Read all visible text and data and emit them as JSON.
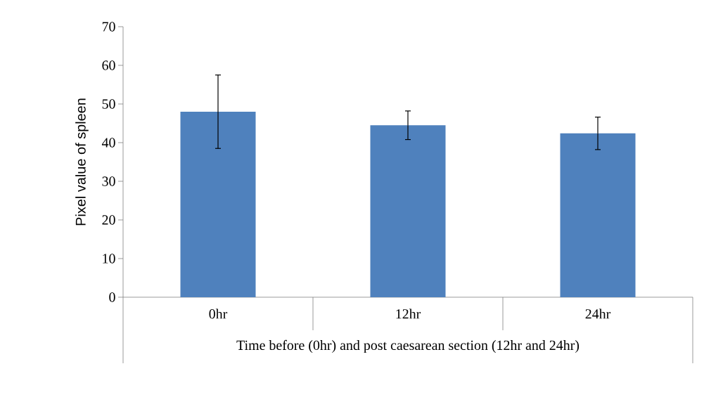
{
  "chart_data": {
    "type": "bar",
    "xlabel": "Time before (0hr) and post caesarean section (12hr and 24hr)",
    "ylabel": "Pixel value of spleen",
    "categories": [
      "0hr",
      "12hr",
      "24hr"
    ],
    "values": [
      48.0,
      44.5,
      42.4
    ],
    "errors": [
      9.5,
      3.7,
      4.2
    ],
    "color": "#4f81bd",
    "ylim": [
      0,
      70
    ],
    "yticks": [
      0,
      10,
      20,
      30,
      40,
      50,
      60,
      70
    ],
    "grid": false
  }
}
